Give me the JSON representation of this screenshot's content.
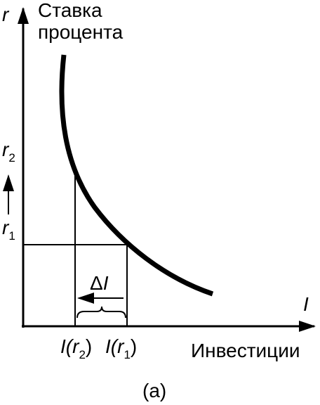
{
  "y_axis": {
    "symbol": "r",
    "label_lines": [
      "Ставка",
      "процента"
    ]
  },
  "x_axis": {
    "symbol": "I",
    "label": "Инвестиции"
  },
  "y_marks": {
    "r2": {
      "base": "r",
      "sub": "2"
    },
    "r1": {
      "base": "r",
      "sub": "1"
    }
  },
  "x_marks": {
    "i_r2": {
      "open": "I(",
      "base": "r",
      "sub": "2",
      "close": ")"
    },
    "i_r1": {
      "open": "I(",
      "base": "r",
      "sub": "1",
      "close": ")"
    }
  },
  "delta": {
    "symbol": "Δ",
    "var": "I"
  },
  "caption": "(a)"
}
